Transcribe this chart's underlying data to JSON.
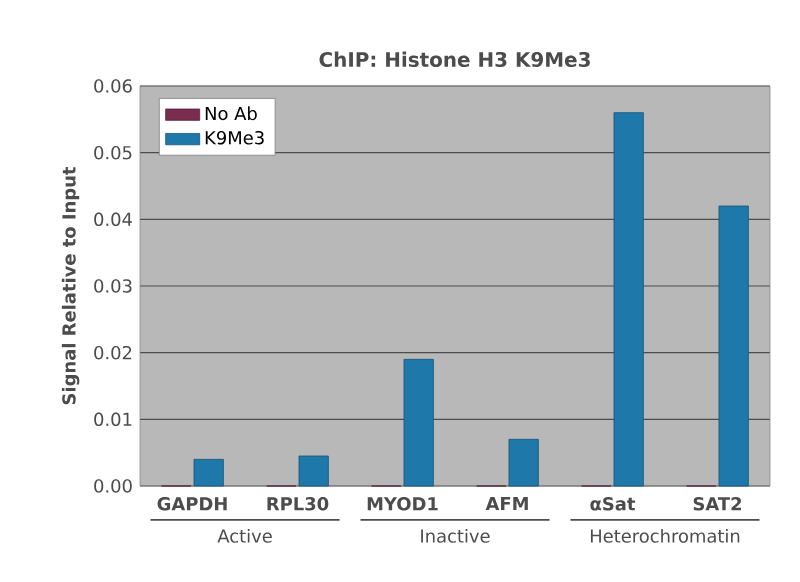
{
  "chart_data": {
    "type": "bar",
    "title": "ChIP: Histone H3 K9Me3",
    "ylabel": "Signal Relative to Input",
    "categories": [
      "GAPDH",
      "RPL30",
      "MYOD1",
      "AFM",
      "αSat",
      "SAT2"
    ],
    "series": [
      {
        "name": "No Ab",
        "color": "#7a2d4e",
        "values": [
          0,
          0,
          0,
          0,
          0,
          0
        ]
      },
      {
        "name": "K9Me3",
        "color": "#1f78aa",
        "values": [
          0.004,
          0.0045,
          0.019,
          0.007,
          0.056,
          0.042
        ]
      }
    ],
    "annotations": [
      "Active",
      "Inactive",
      "Heterochromatin"
    ],
    "ylim": [
      0,
      0.06
    ],
    "yticks": [
      {
        "value": 0,
        "label": "0.00"
      },
      {
        "value": 0.01,
        "label": "0.01"
      },
      {
        "value": 0.02,
        "label": "0.02"
      },
      {
        "value": 0.03,
        "label": "0.03"
      },
      {
        "value": 0.04,
        "label": "0.04"
      },
      {
        "value": 0.05,
        "label": "0.05"
      },
      {
        "value": 0.06,
        "label": "0.06"
      }
    ],
    "grid": "y",
    "legend": "top left"
  }
}
